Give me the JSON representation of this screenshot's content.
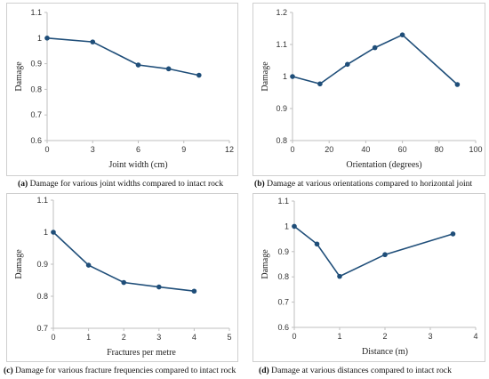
{
  "colors": {
    "series": "#1f4e79",
    "axis": "#bfbfbf"
  },
  "chart_data": [
    {
      "type": "line",
      "xlabel": "Joint width (cm)",
      "ylabel": "Damage",
      "xlim": [
        0,
        12
      ],
      "xticks": [
        0,
        3,
        6,
        9,
        12
      ],
      "ylim": [
        0.6,
        1.1
      ],
      "yticks": [
        0.6,
        0.7,
        0.8,
        0.9,
        1,
        1.1
      ],
      "series": [
        {
          "x": [
            0,
            3,
            6,
            8,
            10
          ],
          "y": [
            1.0,
            0.985,
            0.895,
            0.88,
            0.855
          ]
        }
      ],
      "caption_tag": "(a)",
      "caption_text": "Damage for various joint widths compared to intact rock"
    },
    {
      "type": "line",
      "xlabel": "Orientation (degrees)",
      "ylabel": "Damage",
      "xlim": [
        0,
        100
      ],
      "xticks": [
        0,
        20,
        40,
        60,
        80,
        100
      ],
      "ylim": [
        0.8,
        1.2
      ],
      "yticks": [
        0.8,
        0.9,
        1,
        1.1,
        1.2
      ],
      "series": [
        {
          "x": [
            0,
            15,
            30,
            45,
            60,
            90
          ],
          "y": [
            1.0,
            0.977,
            1.038,
            1.09,
            1.13,
            0.975
          ]
        }
      ],
      "caption_tag": "(b)",
      "caption_text": "Damage at various orientations compared to horizontal joint"
    },
    {
      "type": "line",
      "xlabel": "Fractures per metre",
      "ylabel": "Damage",
      "xlim": [
        0,
        5
      ],
      "xticks": [
        0,
        1,
        2,
        3,
        4,
        5
      ],
      "ylim": [
        0.7,
        1.1
      ],
      "yticks": [
        0.7,
        0.8,
        0.9,
        1,
        1.1
      ],
      "series": [
        {
          "x": [
            0,
            1,
            2,
            3,
            4
          ],
          "y": [
            1.0,
            0.897,
            0.843,
            0.829,
            0.816
          ]
        }
      ],
      "caption_tag": "(c)",
      "caption_text": "Damage for various fracture frequencies compared to intact rock"
    },
    {
      "type": "line",
      "xlabel": "Distance (m)",
      "ylabel": "Damage",
      "xlim": [
        0,
        4
      ],
      "xticks": [
        0,
        1,
        2,
        3,
        4
      ],
      "ylim": [
        0.6,
        1.1
      ],
      "yticks": [
        0.6,
        0.7,
        0.8,
        0.9,
        1,
        1.1
      ],
      "series": [
        {
          "x": [
            0,
            0.5,
            1,
            2,
            3.5
          ],
          "y": [
            1.0,
            0.93,
            0.802,
            0.888,
            0.97
          ]
        }
      ],
      "caption_tag": "(d)",
      "caption_text": "Damage at various distances compared to intact rock"
    }
  ]
}
